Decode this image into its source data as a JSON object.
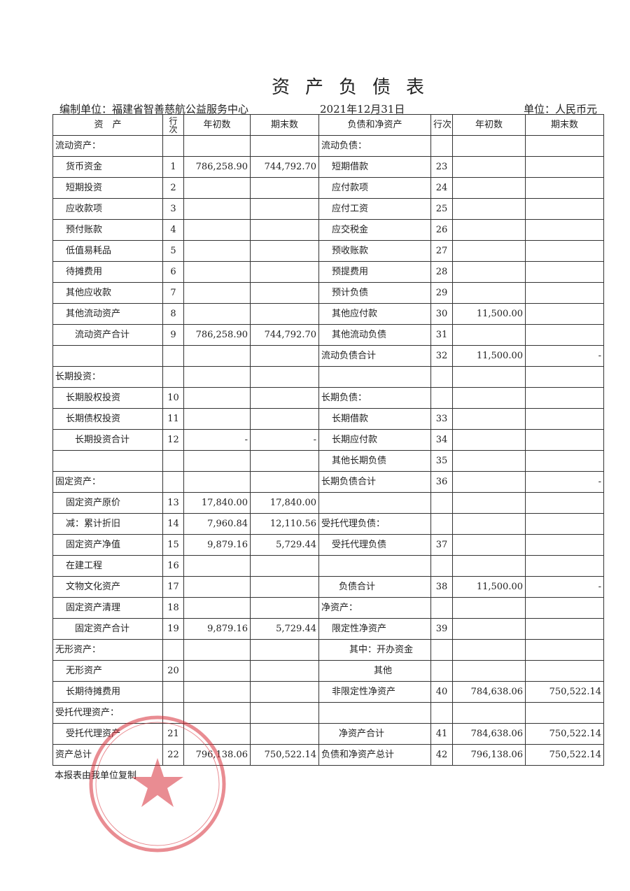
{
  "header": {
    "title": "资产负债表",
    "org": "编制单位：福建省智善慈航公益服务中心",
    "date": "2021年12月31日",
    "unit": "单位：人民币元"
  },
  "table": {
    "columns": [
      "资　产",
      "行次",
      "年初数",
      "期末数",
      "负债和净资产",
      "行次",
      "年初数",
      "期末数"
    ],
    "rows": [
      [
        "流动资产：",
        null,
        null,
        null,
        "流动负债：",
        null,
        null,
        null
      ],
      [
        "货币资金",
        "1",
        "786,258.90",
        "744,792.70",
        "短期借款",
        "23",
        null,
        null
      ],
      [
        "短期投资",
        "2",
        null,
        null,
        "应付款项",
        "24",
        null,
        null
      ],
      [
        "应收款项",
        "3",
        null,
        null,
        "应付工资",
        "25",
        null,
        null
      ],
      [
        "预付账款",
        "4",
        null,
        null,
        "应交税金",
        "26",
        null,
        null
      ],
      [
        "低值易耗品",
        "5",
        null,
        null,
        "预收账款",
        "27",
        null,
        null
      ],
      [
        "待摊费用",
        "6",
        null,
        null,
        "预提费用",
        "28",
        null,
        null
      ],
      [
        "其他应收款",
        "7",
        null,
        null,
        "预计负债",
        "29",
        null,
        null
      ],
      [
        "其他流动资产",
        "8",
        null,
        null,
        "其他应付款",
        "30",
        "11,500.00",
        null
      ],
      [
        "流动资产合计",
        "9",
        "786,258.90",
        "744,792.70",
        "其他流动负债",
        "31",
        null,
        null
      ],
      [
        null,
        null,
        null,
        null,
        "流动负债合计",
        "32",
        "11,500.00",
        "-"
      ],
      [
        "长期投资：",
        null,
        null,
        null,
        null,
        null,
        null,
        null
      ],
      [
        "长期股权投资",
        "10",
        null,
        null,
        "长期负债：",
        null,
        null,
        null
      ],
      [
        "长期债权投资",
        "11",
        null,
        null,
        "长期借款",
        "33",
        null,
        null
      ],
      [
        "长期投资合计",
        "12",
        "-",
        "-",
        "长期应付款",
        "34",
        null,
        null
      ],
      [
        null,
        null,
        null,
        null,
        "其他长期负债",
        "35",
        null,
        null
      ],
      [
        "固定资产：",
        null,
        null,
        null,
        "长期负债合计",
        "36",
        null,
        "-"
      ],
      [
        "固定资产原价",
        "13",
        "17,840.00",
        "17,840.00",
        null,
        null,
        null,
        null
      ],
      [
        "减：累计折旧",
        "14",
        "7,960.84",
        "12,110.56",
        "受托代理负债：",
        null,
        null,
        null
      ],
      [
        "固定资产净值",
        "15",
        "9,879.16",
        "5,729.44",
        "受托代理负债",
        "37",
        null,
        null
      ],
      [
        "在建工程",
        "16",
        null,
        null,
        null,
        null,
        null,
        null
      ],
      [
        "文物文化资产",
        "17",
        null,
        null,
        "负债合计",
        "38",
        "11,500.00",
        "-"
      ],
      [
        "固定资产清理",
        "18",
        null,
        null,
        "净资产：",
        null,
        null,
        null
      ],
      [
        "固定资产合计",
        "19",
        "9,879.16",
        "5,729.44",
        "限定性净资产",
        "39",
        null,
        null
      ],
      [
        "无形资产：",
        null,
        null,
        null,
        "其中：开办资金",
        null,
        null,
        null
      ],
      [
        "无形资产",
        "20",
        null,
        null,
        "其他",
        null,
        null,
        null
      ],
      [
        "长期待摊费用",
        null,
        null,
        null,
        "非限定性净资产",
        "40",
        "784,638.06",
        "750,522.14"
      ],
      [
        "受托代理资产：",
        null,
        null,
        null,
        null,
        null,
        null,
        null
      ],
      [
        "受托代理资产",
        "21",
        null,
        null,
        "净资产合计",
        "41",
        "784,638.06",
        "750,522.14"
      ],
      [
        "资产总计",
        "22",
        "796,138.06",
        "750,522.14",
        "负债和净资产总计",
        "42",
        "796,138.06",
        "750,522.14"
      ]
    ]
  },
  "footer": {
    "note": "本报表由我单位复制"
  }
}
